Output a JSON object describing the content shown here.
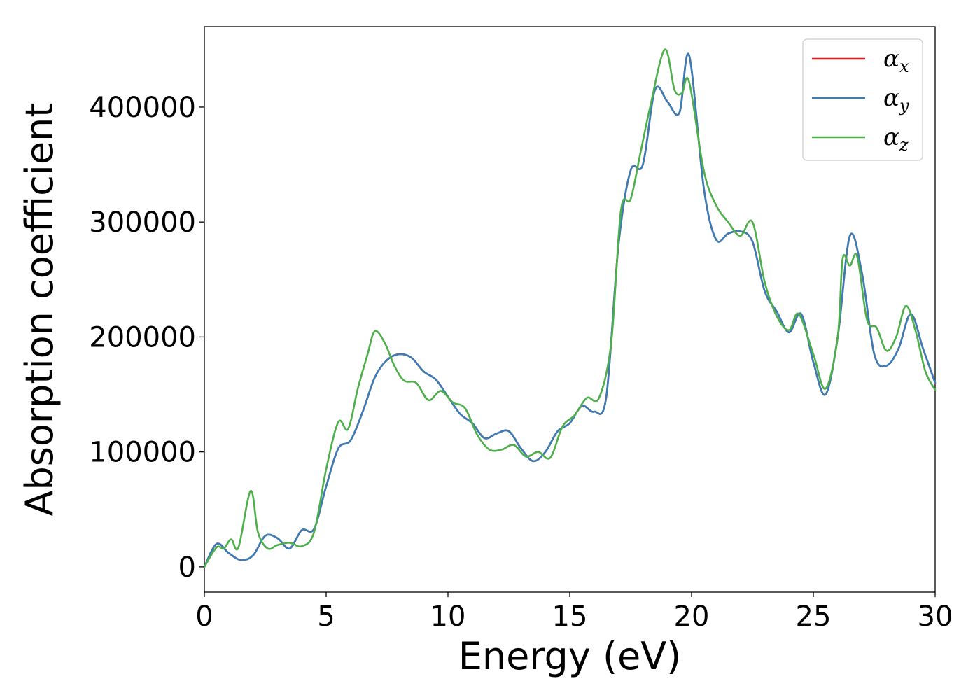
{
  "chart_data": {
    "type": "line",
    "xlabel": "Energy (eV)",
    "ylabel": "Absorption coefficient",
    "xlim": [
      0,
      30
    ],
    "ylim": [
      -22000,
      470000
    ],
    "xticks": [
      0,
      5,
      10,
      15,
      20,
      25,
      30
    ],
    "xtick_labels": [
      "0",
      "5",
      "10",
      "15",
      "20",
      "25",
      "30"
    ],
    "yticks": [
      0,
      100000,
      200000,
      300000,
      400000
    ],
    "ytick_labels": [
      "0",
      "100000",
      "200000",
      "300000",
      "400000"
    ],
    "grid": false,
    "legend_position": "top-right",
    "series": [
      {
        "name": "α_x",
        "legend_symbol": "α",
        "legend_subscript": "x",
        "color": "#e41a1c",
        "x": [
          0,
          0.5,
          1.0,
          1.5,
          2.0,
          2.5,
          3.0,
          3.5,
          4.0,
          4.5,
          5.0,
          5.5,
          6.0,
          6.5,
          7.0,
          7.5,
          8.0,
          8.5,
          9.0,
          9.5,
          10.0,
          10.5,
          11.0,
          11.5,
          12.0,
          12.5,
          13.0,
          13.5,
          14.0,
          14.5,
          15.0,
          15.5,
          16.0,
          16.5,
          17.0,
          17.5,
          18.0,
          18.5,
          19.0,
          19.5,
          19.9,
          20.5,
          21.0,
          21.5,
          22.0,
          22.5,
          23.0,
          23.5,
          24.0,
          24.5,
          25.0,
          25.5,
          26.0,
          26.5,
          27.0,
          27.5,
          28.0,
          28.5,
          29.0,
          29.5,
          30.0
        ],
        "y": [
          0,
          20000,
          12000,
          6000,
          10000,
          27000,
          25000,
          16000,
          32000,
          33000,
          70000,
          103000,
          110000,
          135000,
          165000,
          180000,
          185000,
          182000,
          170000,
          163000,
          148000,
          133000,
          125000,
          112000,
          116000,
          118000,
          103000,
          92000,
          100000,
          118000,
          125000,
          140000,
          135000,
          148000,
          280000,
          345000,
          350000,
          415000,
          405000,
          395000,
          445000,
          330000,
          285000,
          290000,
          292000,
          283000,
          240000,
          222000,
          204000,
          220000,
          178000,
          150000,
          200000,
          288000,
          255000,
          185000,
          175000,
          190000,
          220000,
          190000,
          160000
        ]
      },
      {
        "name": "α_y",
        "legend_symbol": "α",
        "legend_subscript": "y",
        "color": "#377eb8",
        "x": [
          0,
          0.5,
          1.0,
          1.5,
          2.0,
          2.5,
          3.0,
          3.5,
          4.0,
          4.5,
          5.0,
          5.5,
          6.0,
          6.5,
          7.0,
          7.5,
          8.0,
          8.5,
          9.0,
          9.5,
          10.0,
          10.5,
          11.0,
          11.5,
          12.0,
          12.5,
          13.0,
          13.5,
          14.0,
          14.5,
          15.0,
          15.5,
          16.0,
          16.5,
          17.0,
          17.5,
          18.0,
          18.5,
          19.0,
          19.5,
          19.9,
          20.5,
          21.0,
          21.5,
          22.0,
          22.5,
          23.0,
          23.5,
          24.0,
          24.5,
          25.0,
          25.5,
          26.0,
          26.5,
          27.0,
          27.5,
          28.0,
          28.5,
          29.0,
          29.5,
          30.0
        ],
        "y": [
          0,
          20000,
          12000,
          6000,
          10000,
          27000,
          25000,
          16000,
          32000,
          33000,
          70000,
          103000,
          110000,
          135000,
          165000,
          180000,
          185000,
          182000,
          170000,
          163000,
          148000,
          133000,
          125000,
          112000,
          116000,
          118000,
          103000,
          92000,
          100000,
          118000,
          125000,
          140000,
          135000,
          148000,
          280000,
          345000,
          350000,
          415000,
          405000,
          395000,
          445000,
          330000,
          285000,
          290000,
          292000,
          283000,
          240000,
          222000,
          204000,
          220000,
          178000,
          150000,
          200000,
          288000,
          255000,
          185000,
          175000,
          190000,
          220000,
          190000,
          160000
        ]
      },
      {
        "name": "α_z",
        "legend_symbol": "α",
        "legend_subscript": "z",
        "color": "#4daf4a",
        "x": [
          0,
          0.5,
          0.8,
          1.1,
          1.4,
          1.9,
          2.2,
          2.6,
          3.0,
          3.5,
          4.0,
          4.5,
          5.0,
          5.5,
          5.9,
          6.3,
          6.7,
          7.0,
          7.4,
          7.8,
          8.2,
          8.7,
          9.2,
          9.7,
          10.2,
          10.7,
          11.2,
          11.7,
          12.2,
          12.7,
          13.2,
          13.7,
          14.2,
          14.7,
          15.2,
          15.7,
          16.2,
          16.7,
          17.1,
          17.5,
          17.9,
          18.3,
          18.9,
          19.3,
          19.6,
          19.9,
          20.5,
          21.0,
          21.5,
          22.0,
          22.5,
          23.0,
          23.5,
          24.0,
          24.4,
          25.0,
          25.5,
          26.0,
          26.2,
          26.5,
          26.8,
          27.2,
          27.6,
          28.0,
          28.4,
          28.8,
          29.2,
          29.6,
          30.0
        ],
        "y": [
          0,
          17000,
          16000,
          24000,
          17000,
          66000,
          30000,
          16000,
          19000,
          21000,
          18000,
          30000,
          85000,
          126000,
          120000,
          155000,
          185000,
          205000,
          195000,
          175000,
          162000,
          160000,
          145000,
          153000,
          143000,
          138000,
          115000,
          102000,
          102000,
          106000,
          96000,
          100000,
          95000,
          122000,
          132000,
          147000,
          147000,
          195000,
          310000,
          320000,
          360000,
          400000,
          450000,
          415000,
          412000,
          422000,
          345000,
          315000,
          300000,
          288000,
          300000,
          248000,
          218000,
          206000,
          220000,
          185000,
          155000,
          200000,
          268000,
          262000,
          270000,
          215000,
          208000,
          188000,
          200000,
          227000,
          205000,
          170000,
          154000
        ]
      }
    ]
  }
}
